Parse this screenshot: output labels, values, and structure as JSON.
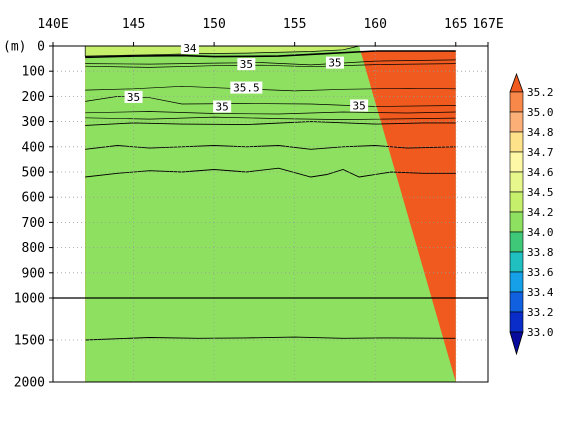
{
  "chart_data": {
    "type": "heatmap",
    "xlabel": "",
    "ylabel": "(m)",
    "x_ticks": [
      "140E",
      "145",
      "150",
      "155",
      "160",
      "165",
      "167E"
    ],
    "x_tick_values": [
      140,
      145,
      150,
      155,
      160,
      165,
      167
    ],
    "xlim": [
      140,
      167
    ],
    "data_xlim": [
      142,
      165
    ],
    "y_ticks_upper": [
      "0",
      "100",
      "200",
      "300",
      "400",
      "500",
      "600",
      "700",
      "800",
      "900",
      "1000"
    ],
    "y_ticks_upper_values": [
      0,
      100,
      200,
      300,
      400,
      500,
      600,
      700,
      800,
      900,
      1000
    ],
    "y_ticks_lower": [
      "1500",
      "2000"
    ],
    "y_ticks_lower_values": [
      1500,
      2000
    ],
    "ylim": [
      0,
      2000
    ],
    "y_axis_break": 1000,
    "y_inverted": true,
    "grid": true,
    "colorbar": {
      "placement": "right",
      "labels": [
        "35.2",
        "35.0",
        "34.8",
        "34.7",
        "34.6",
        "34.5",
        "34.2",
        "34.0",
        "33.8",
        "33.6",
        "33.4",
        "33.2",
        "33.0"
      ],
      "colors": [
        "#f05a1e",
        "#f7884a",
        "#fcb078",
        "#fde28a",
        "#fdf8a6",
        "#e8f78c",
        "#c6f06c",
        "#8ee060",
        "#3ec878",
        "#20c0c0",
        "#16a0e8",
        "#1060e0",
        "#0a2cc8",
        "#080a9c"
      ]
    },
    "contour_labels": [
      "34",
      "35",
      "35",
      "35.5",
      "35",
      "35",
      "35"
    ],
    "layers": [
      {
        "color": "#fdf8a6",
        "top": [
          [
            142,
            1500
          ],
          [
            146,
            1470
          ],
          [
            149,
            1480
          ],
          [
            152,
            1475
          ],
          [
            155,
            1465
          ],
          [
            158,
            1480
          ],
          [
            161,
            1475
          ],
          [
            165,
            1480
          ]
        ]
      },
      {
        "color": "#e8f78c",
        "top": [
          [
            142,
            520
          ],
          [
            144,
            505
          ],
          [
            146,
            495
          ],
          [
            148,
            500
          ],
          [
            150,
            490
          ],
          [
            152,
            500
          ],
          [
            154,
            485
          ],
          [
            156,
            520
          ],
          [
            157,
            510
          ],
          [
            158,
            490
          ],
          [
            159,
            520
          ],
          [
            161,
            500
          ],
          [
            163,
            505
          ],
          [
            165,
            505
          ]
        ]
      },
      {
        "color": "#fde28a",
        "top": [
          [
            142,
            410
          ],
          [
            144,
            395
          ],
          [
            146,
            405
          ],
          [
            148,
            400
          ],
          [
            150,
            395
          ],
          [
            152,
            400
          ],
          [
            154,
            395
          ],
          [
            156,
            410
          ],
          [
            158,
            400
          ],
          [
            160,
            395
          ],
          [
            162,
            405
          ],
          [
            165,
            400
          ]
        ]
      },
      {
        "color": "#fcb078",
        "top": [
          [
            142,
            315
          ],
          [
            145,
            305
          ],
          [
            148,
            310
          ],
          [
            152,
            312
          ],
          [
            156,
            300
          ],
          [
            160,
            310
          ],
          [
            163,
            305
          ],
          [
            165,
            305
          ]
        ]
      },
      {
        "color": "#f05a1e",
        "top": [
          [
            142,
            45
          ],
          [
            145,
            40
          ],
          [
            148,
            38
          ],
          [
            150,
            42
          ],
          [
            154,
            40
          ],
          [
            157,
            30
          ],
          [
            160,
            20
          ],
          [
            165,
            20
          ]
        ]
      },
      {
        "color": "#8ee060",
        "top": [
          [
            142,
            0
          ],
          [
            143.5,
            0
          ],
          [
            145,
            0
          ],
          [
            147,
            0
          ],
          [
            149,
            0
          ],
          [
            151,
            0
          ],
          [
            153,
            0
          ],
          [
            155,
            0
          ],
          [
            157,
            0
          ],
          [
            159,
            0
          ]
        ]
      }
    ]
  }
}
